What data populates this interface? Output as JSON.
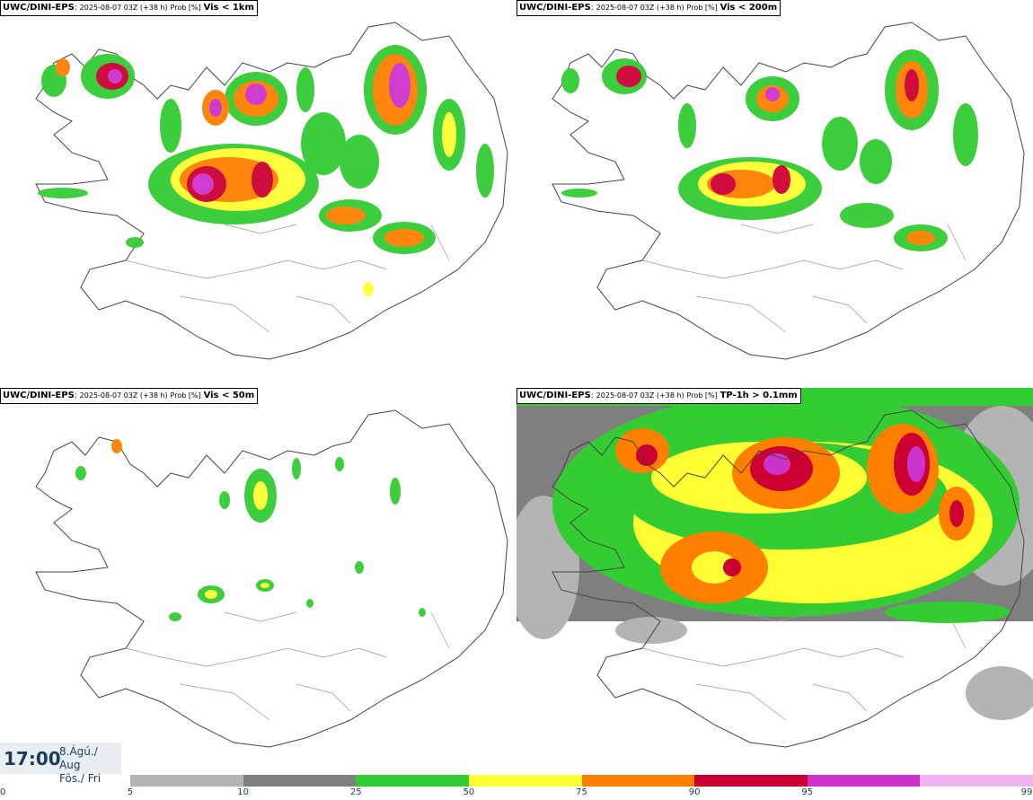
{
  "panels": [
    {
      "prefix": "UWC/DINI-EPS",
      "run": "2025-08-07 03Z (+38 h)",
      "unit": "Prob [%]",
      "field": "Vis < 1km"
    },
    {
      "prefix": "UWC/DINI-EPS",
      "run": "2025-08-07 03Z (+38 h)",
      "unit": "Prob [%]",
      "field": "Vis < 200m"
    },
    {
      "prefix": "UWC/DINI-EPS",
      "run": "2025-08-07 03Z (+38 h)",
      "unit": "Prob [%]",
      "field": "Vis < 50m"
    },
    {
      "prefix": "UWC/DINI-EPS",
      "run": "2025-08-07 03Z (+38 h)",
      "unit": "Prob [%]",
      "field": "TP-1h > 0.1mm"
    }
  ],
  "valid_time": {
    "clock": "17:00",
    "date_line1": "8.Ágú./ Aug",
    "date_line2": "Fös./ Fri"
  },
  "colorbar": {
    "ticks": [
      "0",
      "5",
      "10",
      "25",
      "50",
      "75",
      "90",
      "95",
      "99"
    ],
    "colors": [
      "#b4b4b4",
      "#7f7f7f",
      "#33cc33",
      "#ffff33",
      "#ff7f00",
      "#cc0033",
      "#cc33cc",
      "#f2b3f2"
    ]
  },
  "map_region": "Iceland"
}
